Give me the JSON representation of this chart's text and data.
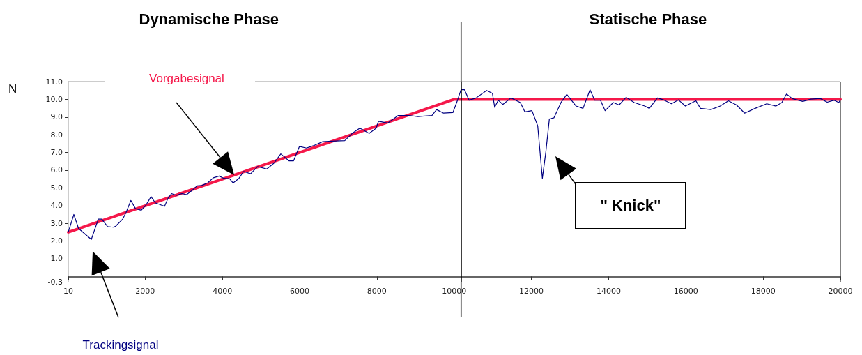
{
  "chart_data": {
    "type": "line",
    "ylabel": "N",
    "annotations": [
      "Dynamische Phase",
      "Statische Phase",
      "\" Knick\""
    ],
    "xlim": [
      10,
      20000
    ],
    "xticks": [
      10,
      2000,
      4000,
      6000,
      8000,
      10000,
      12000,
      14000,
      16000,
      18000,
      20000
    ],
    "ylim": [
      -0.3,
      11
    ],
    "yticks": [
      -0.3,
      {
        "value": 1,
        "label": "1.0"
      },
      {
        "value": 2,
        "label": "2.0"
      },
      {
        "value": 3,
        "label": "3.0"
      },
      {
        "value": 4,
        "label": "4.0"
      },
      {
        "value": 5,
        "label": "5.0"
      },
      {
        "value": 6,
        "label": "6.0"
      },
      {
        "value": 7,
        "label": "7.0"
      },
      {
        "value": 8,
        "label": "8.0"
      },
      {
        "value": 9,
        "label": "9.0"
      },
      {
        "value": 10,
        "label": "10.0"
      },
      {
        "value": 11,
        "label": "11.0"
      }
    ],
    "ref_lines": [
      {
        "axis": "x",
        "value": 10180,
        "color": "#000000"
      }
    ],
    "series": [
      {
        "name": "Vorgabesignal",
        "color": "#f5184a",
        "x": [
          10,
          10000,
          20000
        ],
        "values": [
          2.5,
          10,
          10
        ]
      },
      {
        "name": "Trackingsignal",
        "color": "#000080",
        "x": [
          10,
          154,
          275,
          606,
          787,
          877,
          1027,
          1178,
          1238,
          1419,
          1509,
          1629,
          1750,
          1900,
          2021,
          2153,
          2261,
          2502,
          2593,
          2683,
          2803,
          2954,
          3074,
          3225,
          3345,
          3466,
          3616,
          3767,
          3917,
          4037,
          4188,
          4278,
          4429,
          4549,
          4730,
          4910,
          5151,
          5332,
          5512,
          5723,
          5843,
          5994,
          6174,
          6355,
          6596,
          6837,
          7168,
          7378,
          7559,
          7800,
          7980,
          8041,
          8281,
          8552,
          8823,
          9064,
          9425,
          9546,
          9726,
          9967,
          10087,
          10178,
          10268,
          10388,
          10569,
          10840,
          10990,
          11050,
          11141,
          11261,
          11472,
          11713,
          11833,
          12014,
          12164,
          12284,
          12375,
          12465,
          12585,
          12766,
          12917,
          13157,
          13337,
          13518,
          13638,
          13789,
          13909,
          14120,
          14270,
          14451,
          14662,
          14933,
          15053,
          15264,
          15444,
          15625,
          15805,
          15986,
          16257,
          16377,
          16648,
          16889,
          17100,
          17310,
          17521,
          17792,
          18093,
          18334,
          18484,
          18605,
          18755,
          19026,
          19236,
          19477,
          19658,
          19839,
          19959,
          20000
        ],
        "values": [
          2.51,
          3.5,
          2.71,
          2.09,
          3.24,
          3.24,
          2.82,
          2.78,
          2.84,
          3.24,
          3.63,
          4.29,
          3.83,
          3.74,
          4.03,
          4.51,
          4.16,
          3.96,
          4.42,
          4.68,
          4.58,
          4.68,
          4.62,
          4.88,
          5.12,
          5.14,
          5.28,
          5.57,
          5.67,
          5.54,
          5.51,
          5.28,
          5.54,
          5.93,
          5.8,
          6.2,
          6.07,
          6.39,
          6.92,
          6.53,
          6.53,
          7.34,
          7.25,
          7.38,
          7.61,
          7.64,
          7.67,
          8.11,
          8.37,
          8.08,
          8.37,
          8.76,
          8.66,
          9.09,
          9.09,
          9.03,
          9.09,
          9.42,
          9.22,
          9.25,
          9.95,
          10.54,
          10.54,
          9.95,
          10.08,
          10.5,
          10.34,
          9.55,
          9.95,
          9.71,
          10.08,
          9.82,
          9.29,
          9.36,
          8.5,
          5.54,
          7.05,
          8.89,
          8.96,
          9.82,
          10.28,
          9.62,
          9.49,
          10.54,
          9.95,
          9.95,
          9.36,
          9.82,
          9.68,
          10.11,
          9.82,
          9.62,
          9.49,
          10.08,
          9.95,
          9.75,
          9.97,
          9.62,
          9.92,
          9.49,
          9.42,
          9.62,
          9.92,
          9.68,
          9.22,
          9.49,
          9.75,
          9.62,
          9.82,
          10.3,
          10.04,
          9.88,
          10.01,
          10.05,
          9.84,
          9.95,
          9.82,
          9.97
        ]
      }
    ]
  }
}
